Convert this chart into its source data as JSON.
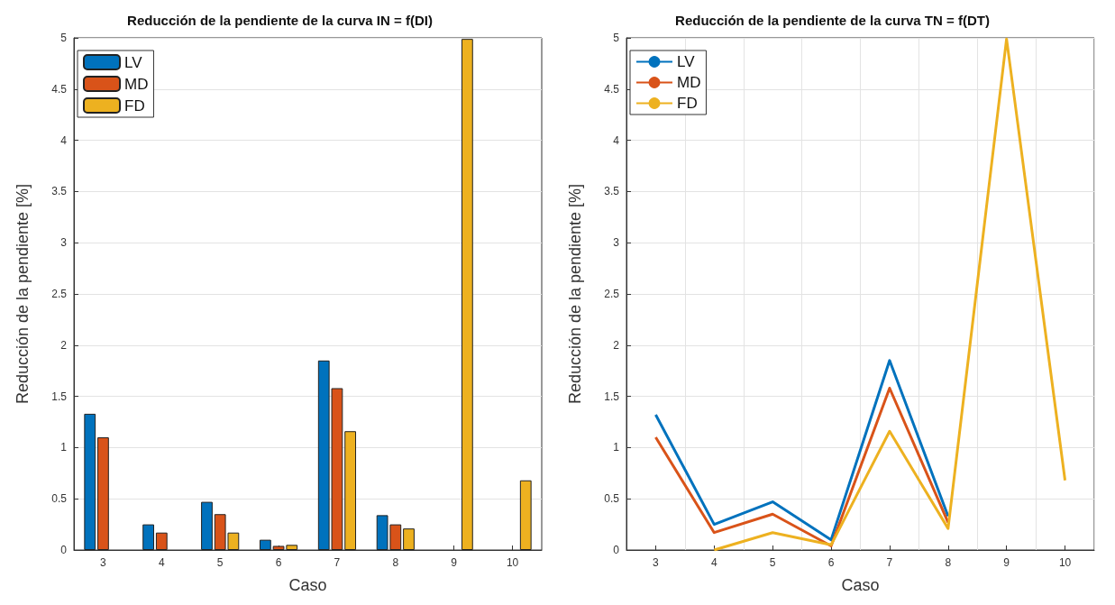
{
  "chart_data": [
    {
      "type": "bar",
      "title": "Reducción de la pendiente de la curva IN = f(DI)",
      "xlabel": "Caso",
      "ylabel": "Reducción de la pendiente [%]",
      "categories": [
        "3",
        "4",
        "5",
        "6",
        "7",
        "8",
        "9",
        "10"
      ],
      "series": [
        {
          "name": "LV",
          "color": "#0072bd",
          "values": [
            1.33,
            0.25,
            0.47,
            0.1,
            1.85,
            0.34,
            null,
            null
          ]
        },
        {
          "name": "MD",
          "color": "#d95319",
          "values": [
            1.1,
            0.17,
            0.35,
            0.04,
            1.58,
            0.25,
            null,
            null
          ]
        },
        {
          "name": "FD",
          "color": "#edb120",
          "values": [
            null,
            0,
            0.17,
            0.05,
            1.16,
            0.21,
            4.99,
            0.68
          ]
        }
      ],
      "ylim": [
        0,
        5
      ],
      "yticks": [
        0,
        0.5,
        1,
        1.5,
        2,
        2.5,
        3,
        3.5,
        4,
        4.5,
        5
      ],
      "grid": "y",
      "legend": "top left"
    },
    {
      "type": "line",
      "title": "Reducción de la pendiente de la curva TN = f(DT)",
      "xlabel": "Caso",
      "ylabel": "Reducción de la pendiente [%]",
      "categories": [
        "3",
        "4",
        "5",
        "6",
        "7",
        "8",
        "9",
        "10"
      ],
      "series": [
        {
          "name": "LV",
          "color": "#0072bd",
          "values": [
            1.32,
            0.25,
            0.47,
            0.1,
            1.85,
            0.33,
            null,
            null
          ]
        },
        {
          "name": "MD",
          "color": "#d95319",
          "values": [
            1.1,
            0.17,
            0.35,
            0.04,
            1.58,
            0.27,
            null,
            null
          ]
        },
        {
          "name": "FD",
          "color": "#edb120",
          "values": [
            null,
            0,
            0.17,
            0.05,
            1.16,
            0.21,
            4.99,
            0.68
          ]
        }
      ],
      "ylim": [
        0,
        5
      ],
      "yticks": [
        0,
        0.5,
        1,
        1.5,
        2,
        2.5,
        3,
        3.5,
        4,
        4.5,
        5
      ],
      "grid": true,
      "legend": "top left",
      "marker": "none",
      "line_style": "solid"
    }
  ]
}
